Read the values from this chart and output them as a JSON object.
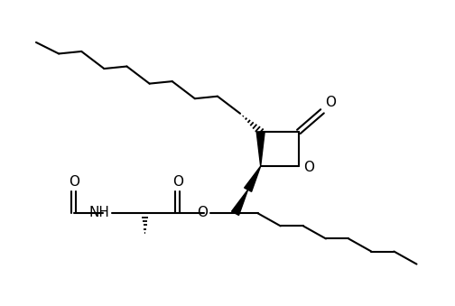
{
  "background": "#ffffff",
  "line_color": "#000000",
  "line_width": 1.5,
  "font_size": 10,
  "fig_width": 5.04,
  "fig_height": 3.39,
  "xlim": [
    0,
    10
  ],
  "ylim": [
    0,
    6.72
  ]
}
